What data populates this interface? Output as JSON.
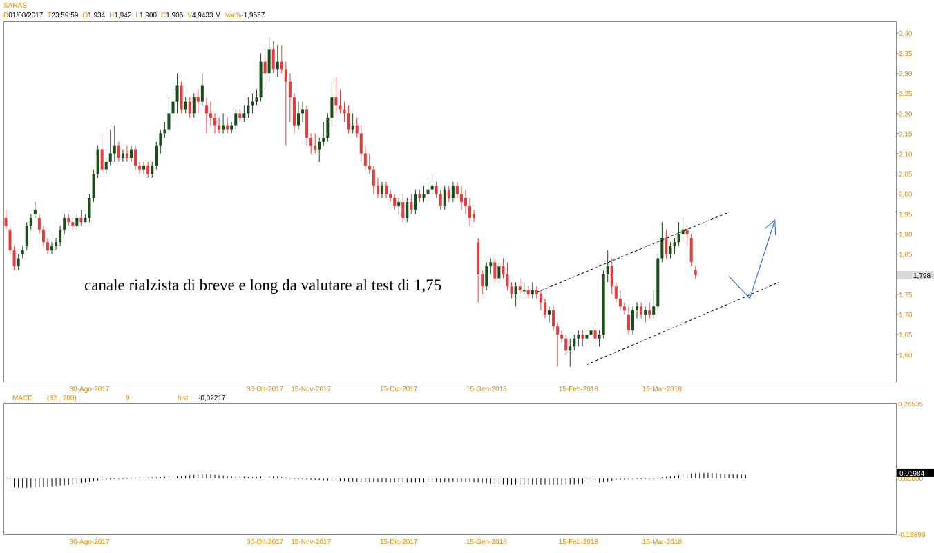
{
  "header": {
    "symbol": "SARAS",
    "fields": [
      {
        "key": "D",
        "value": "01/08/2017"
      },
      {
        "key": "T",
        "value": "23:59:59"
      },
      {
        "key": "O",
        "value": "1,934"
      },
      {
        "key": "H",
        "value": "1,942"
      },
      {
        "key": "L",
        "value": "1,900"
      },
      {
        "key": "C",
        "value": "1,905"
      },
      {
        "key": "V",
        "value": "4,9433 M"
      },
      {
        "key": "Var%",
        "value": "-1,9557"
      }
    ]
  },
  "macd_header": {
    "name": "MACD",
    "params": "(32 , 200) :",
    "signal": "9 :",
    "hist_label": "hist :",
    "hist_value": "-0,02217"
  },
  "colors": {
    "up_candle": "#1a4d1a",
    "down_candle": "#e83a3a",
    "label": "#d89000",
    "arrow": "#3a6fcf",
    "grid_border": "#888888"
  },
  "chart_data": [
    {
      "type": "candlestick",
      "name": "SARAS",
      "x_labels": [
        "30-Ago-2017",
        "30-Ott-2017",
        "15-Nov-2017",
        "15-Dic-2017",
        "15-Gen-2018",
        "15-Feb-2018",
        "15-Mar-2018"
      ],
      "x_label_bars": [
        20,
        62,
        73,
        94,
        115,
        137,
        157
      ],
      "y_ticks": [
        "2,40",
        "2,35",
        "2,30",
        "2,25",
        "2,20",
        "2,15",
        "2,10",
        "2,05",
        "2,00",
        "1,95",
        "1,90",
        "1,85",
        "1,80",
        "1,75",
        "1,70",
        "1,65",
        "1,60"
      ],
      "ylim": [
        1.56,
        2.42
      ],
      "last_price_label": "1,798",
      "last_price": 1.798,
      "annotation": "canale rialzista di breve e long da valutare al test di 1,75",
      "channel_lines": [
        {
          "from": [
            127,
            1.755
          ],
          "to": [
            173,
            1.955
          ]
        },
        {
          "from": [
            139,
            1.575
          ],
          "to": [
            185,
            1.78
          ]
        }
      ],
      "projection_arrow": [
        [
          173,
          1.795
        ],
        [
          178,
          1.74
        ],
        [
          184,
          1.935
        ]
      ],
      "ohlc": [
        [
          1.94,
          1.96,
          1.91,
          1.92
        ],
        [
          1.91,
          1.915,
          1.85,
          1.86
        ],
        [
          1.86,
          1.87,
          1.81,
          1.82
        ],
        [
          1.82,
          1.85,
          1.81,
          1.84
        ],
        [
          1.85,
          1.87,
          1.84,
          1.86
        ],
        [
          1.87,
          1.93,
          1.86,
          1.92
        ],
        [
          1.92,
          1.95,
          1.91,
          1.94
        ],
        [
          1.95,
          1.98,
          1.94,
          1.96
        ],
        [
          1.94,
          1.95,
          1.9,
          1.91
        ],
        [
          1.91,
          1.92,
          1.87,
          1.88
        ],
        [
          1.88,
          1.89,
          1.85,
          1.86
        ],
        [
          1.86,
          1.88,
          1.85,
          1.87
        ],
        [
          1.87,
          1.89,
          1.86,
          1.88
        ],
        [
          1.88,
          1.92,
          1.87,
          1.91
        ],
        [
          1.91,
          1.95,
          1.9,
          1.94
        ],
        [
          1.94,
          1.95,
          1.92,
          1.93
        ],
        [
          1.93,
          1.94,
          1.91,
          1.92
        ],
        [
          1.92,
          1.95,
          1.91,
          1.94
        ],
        [
          1.94,
          1.96,
          1.92,
          1.93
        ],
        [
          1.93,
          1.95,
          1.93,
          1.94
        ],
        [
          1.94,
          2.0,
          1.93,
          1.99
        ],
        [
          1.99,
          2.06,
          1.98,
          2.05
        ],
        [
          2.05,
          2.12,
          2.04,
          2.11
        ],
        [
          2.11,
          2.15,
          2.05,
          2.06
        ],
        [
          2.06,
          2.09,
          2.05,
          2.08
        ],
        [
          2.08,
          2.16,
          2.07,
          2.1
        ],
        [
          2.1,
          2.17,
          2.08,
          2.12
        ],
        [
          2.12,
          2.13,
          2.08,
          2.09
        ],
        [
          2.09,
          2.11,
          2.08,
          2.1
        ],
        [
          2.1,
          2.12,
          2.08,
          2.09
        ],
        [
          2.09,
          2.12,
          2.08,
          2.11
        ],
        [
          2.11,
          2.12,
          2.06,
          2.07
        ],
        [
          2.07,
          2.08,
          2.05,
          2.06
        ],
        [
          2.06,
          2.08,
          2.05,
          2.07
        ],
        [
          2.07,
          2.08,
          2.04,
          2.05
        ],
        [
          2.05,
          2.08,
          2.04,
          2.07
        ],
        [
          2.07,
          2.13,
          2.06,
          2.12
        ],
        [
          2.12,
          2.16,
          2.1,
          2.15
        ],
        [
          2.15,
          2.18,
          2.14,
          2.16
        ],
        [
          2.16,
          2.24,
          2.15,
          2.2
        ],
        [
          2.2,
          2.26,
          2.19,
          2.23
        ],
        [
          2.23,
          2.3,
          2.2,
          2.27
        ],
        [
          2.27,
          2.28,
          2.2,
          2.21
        ],
        [
          2.21,
          2.24,
          2.2,
          2.23
        ],
        [
          2.23,
          2.24,
          2.19,
          2.2
        ],
        [
          2.2,
          2.25,
          2.19,
          2.24
        ],
        [
          2.24,
          2.26,
          2.2,
          2.23
        ],
        [
          2.23,
          2.3,
          2.22,
          2.27
        ],
        [
          2.22,
          2.24,
          2.15,
          2.2
        ],
        [
          2.2,
          2.23,
          2.17,
          2.19
        ],
        [
          2.19,
          2.2,
          2.15,
          2.17
        ],
        [
          2.17,
          2.19,
          2.15,
          2.16
        ],
        [
          2.16,
          2.2,
          2.15,
          2.17
        ],
        [
          2.17,
          2.19,
          2.15,
          2.16
        ],
        [
          2.16,
          2.18,
          2.15,
          2.17
        ],
        [
          2.17,
          2.21,
          2.16,
          2.2
        ],
        [
          2.2,
          2.21,
          2.18,
          2.19
        ],
        [
          2.19,
          2.22,
          2.18,
          2.2
        ],
        [
          2.2,
          2.24,
          2.19,
          2.22
        ],
        [
          2.22,
          2.25,
          2.2,
          2.23
        ],
        [
          2.23,
          2.26,
          2.22,
          2.24
        ],
        [
          2.24,
          2.35,
          2.23,
          2.33
        ],
        [
          2.33,
          2.36,
          2.26,
          2.3
        ],
        [
          2.3,
          2.39,
          2.28,
          2.36
        ],
        [
          2.36,
          2.38,
          2.3,
          2.31
        ],
        [
          2.31,
          2.37,
          2.29,
          2.33
        ],
        [
          2.33,
          2.37,
          2.3,
          2.31
        ],
        [
          2.31,
          2.33,
          2.12,
          2.28
        ],
        [
          2.28,
          2.3,
          2.18,
          2.24
        ],
        [
          2.24,
          2.25,
          2.15,
          2.17
        ],
        [
          2.17,
          2.23,
          2.16,
          2.2
        ],
        [
          2.2,
          2.23,
          2.18,
          2.21
        ],
        [
          2.21,
          2.22,
          2.12,
          2.14
        ],
        [
          2.14,
          2.15,
          2.1,
          2.12
        ],
        [
          2.12,
          2.15,
          2.1,
          2.11
        ],
        [
          2.11,
          2.14,
          2.08,
          2.13
        ],
        [
          2.13,
          2.18,
          2.12,
          2.14
        ],
        [
          2.14,
          2.2,
          2.13,
          2.19
        ],
        [
          2.19,
          2.28,
          2.17,
          2.24
        ],
        [
          2.24,
          2.29,
          2.2,
          2.22
        ],
        [
          2.22,
          2.26,
          2.2,
          2.21
        ],
        [
          2.21,
          2.23,
          2.18,
          2.2
        ],
        [
          2.2,
          2.22,
          2.15,
          2.16
        ],
        [
          2.16,
          2.2,
          2.15,
          2.17
        ],
        [
          2.17,
          2.19,
          2.14,
          2.15
        ],
        [
          2.15,
          2.17,
          2.08,
          2.1
        ],
        [
          2.1,
          2.12,
          2.06,
          2.07
        ],
        [
          2.07,
          2.1,
          2.05,
          2.06
        ],
        [
          2.06,
          2.07,
          2.0,
          2.02
        ],
        [
          2.02,
          2.04,
          1.99,
          2.0
        ],
        [
          2.0,
          2.03,
          1.99,
          2.02
        ],
        [
          2.02,
          2.03,
          1.99,
          2.0
        ],
        [
          2.0,
          2.01,
          1.98,
          1.99
        ],
        [
          1.99,
          2.0,
          1.96,
          1.97
        ],
        [
          1.97,
          1.99,
          1.95,
          1.98
        ],
        [
          1.98,
          2.0,
          1.93,
          1.94
        ],
        [
          1.94,
          1.99,
          1.93,
          1.98
        ],
        [
          1.98,
          2.0,
          1.95,
          1.96
        ],
        [
          1.96,
          2.01,
          1.95,
          2.0
        ],
        [
          2.0,
          2.01,
          1.98,
          1.99
        ],
        [
          1.99,
          2.02,
          1.98,
          2.0
        ],
        [
          2.0,
          2.03,
          1.98,
          2.01
        ],
        [
          2.01,
          2.05,
          2.0,
          2.02
        ],
        [
          2.02,
          2.03,
          1.99,
          2.0
        ],
        [
          2.0,
          2.01,
          1.96,
          1.97
        ],
        [
          1.97,
          2.02,
          1.96,
          2.01
        ],
        [
          2.01,
          2.02,
          1.98,
          1.99
        ],
        [
          1.99,
          2.03,
          1.98,
          2.02
        ],
        [
          2.02,
          2.03,
          1.99,
          2.0
        ],
        [
          2.0,
          2.02,
          1.96,
          1.98
        ],
        [
          1.99,
          2.01,
          1.95,
          1.97
        ],
        [
          1.97,
          1.99,
          1.92,
          1.94
        ],
        [
          1.95,
          1.96,
          1.93,
          1.94
        ],
        [
          1.88,
          1.89,
          1.73,
          1.8
        ],
        [
          1.8,
          1.81,
          1.75,
          1.77
        ],
        [
          1.77,
          1.83,
          1.76,
          1.82
        ],
        [
          1.82,
          1.84,
          1.8,
          1.83
        ],
        [
          1.83,
          1.84,
          1.78,
          1.79
        ],
        [
          1.79,
          1.83,
          1.78,
          1.82
        ],
        [
          1.82,
          1.84,
          1.79,
          1.8
        ],
        [
          1.8,
          1.83,
          1.76,
          1.77
        ],
        [
          1.77,
          1.78,
          1.74,
          1.75
        ],
        [
          1.75,
          1.78,
          1.72,
          1.77
        ],
        [
          1.77,
          1.79,
          1.75,
          1.76
        ],
        [
          1.76,
          1.78,
          1.75,
          1.76
        ],
        [
          1.76,
          1.77,
          1.74,
          1.75
        ],
        [
          1.75,
          1.78,
          1.74,
          1.76
        ],
        [
          1.76,
          1.77,
          1.74,
          1.75
        ],
        [
          1.75,
          1.76,
          1.71,
          1.73
        ],
        [
          1.73,
          1.74,
          1.69,
          1.7
        ],
        [
          1.7,
          1.72,
          1.68,
          1.71
        ],
        [
          1.71,
          1.72,
          1.66,
          1.67
        ],
        [
          1.67,
          1.68,
          1.57,
          1.65
        ],
        [
          1.65,
          1.66,
          1.63,
          1.64
        ],
        [
          1.64,
          1.65,
          1.6,
          1.61
        ],
        [
          1.61,
          1.64,
          1.57,
          1.62
        ],
        [
          1.62,
          1.65,
          1.61,
          1.64
        ],
        [
          1.64,
          1.66,
          1.62,
          1.65
        ],
        [
          1.65,
          1.66,
          1.62,
          1.64
        ],
        [
          1.64,
          1.66,
          1.62,
          1.65
        ],
        [
          1.65,
          1.67,
          1.63,
          1.66
        ],
        [
          1.66,
          1.68,
          1.62,
          1.64
        ],
        [
          1.64,
          1.66,
          1.62,
          1.65
        ],
        [
          1.65,
          1.81,
          1.64,
          1.8
        ],
        [
          1.8,
          1.86,
          1.78,
          1.82
        ],
        [
          1.82,
          1.84,
          1.75,
          1.77
        ],
        [
          1.77,
          1.78,
          1.73,
          1.74
        ],
        [
          1.74,
          1.76,
          1.71,
          1.72
        ],
        [
          1.72,
          1.73,
          1.7,
          1.71
        ],
        [
          1.7,
          1.72,
          1.65,
          1.66
        ],
        [
          1.66,
          1.72,
          1.65,
          1.71
        ],
        [
          1.71,
          1.73,
          1.69,
          1.72
        ],
        [
          1.72,
          1.73,
          1.69,
          1.7
        ],
        [
          1.7,
          1.72,
          1.68,
          1.71
        ],
        [
          1.71,
          1.73,
          1.69,
          1.7
        ],
        [
          1.7,
          1.76,
          1.69,
          1.72
        ],
        [
          1.72,
          1.85,
          1.71,
          1.84
        ],
        [
          1.84,
          1.93,
          1.83,
          1.89
        ],
        [
          1.89,
          1.91,
          1.84,
          1.85
        ],
        [
          1.85,
          1.88,
          1.84,
          1.87
        ],
        [
          1.87,
          1.89,
          1.85,
          1.88
        ],
        [
          1.88,
          1.93,
          1.87,
          1.9
        ],
        [
          1.9,
          1.94,
          1.88,
          1.91
        ],
        [
          1.91,
          1.92,
          1.87,
          1.9
        ],
        [
          1.89,
          1.9,
          1.82,
          1.83
        ],
        [
          1.81,
          1.82,
          1.79,
          1.798
        ]
      ]
    },
    {
      "type": "bar",
      "name": "MACD",
      "x_labels": [
        "30-Ago-2017",
        "30-Ott-2017",
        "15-Nov-2017",
        "15-Dic-2017",
        "15-Gen-2018",
        "15-Feb-2018",
        "15-Mar-2018"
      ],
      "y_ticks": [
        "0,26535",
        "0,00000",
        "-0,19899"
      ],
      "ylim": [
        -0.19899,
        0.26535
      ],
      "last_value_label": "0,01984",
      "last_value": 0.01984,
      "hist": [
        -0.03,
        -0.031,
        -0.032,
        -0.033,
        -0.034,
        -0.034,
        -0.033,
        -0.032,
        -0.031,
        -0.03,
        -0.029,
        -0.028,
        -0.027,
        -0.026,
        -0.025,
        -0.023,
        -0.021,
        -0.019,
        -0.017,
        -0.015,
        -0.013,
        -0.011,
        -0.009,
        -0.007,
        -0.005,
        -0.003,
        -0.002,
        -0.001,
        0.0,
        0.001,
        0.002,
        0.002,
        0.003,
        0.003,
        0.003,
        0.004,
        0.004,
        0.005,
        0.006,
        0.007,
        0.008,
        0.009,
        0.01,
        0.011,
        0.012,
        0.013,
        0.014,
        0.015,
        0.015,
        0.014,
        0.013,
        0.012,
        0.011,
        0.01,
        0.009,
        0.008,
        0.007,
        0.006,
        0.005,
        0.004,
        0.005,
        0.007,
        0.009,
        0.01,
        0.009,
        0.007,
        0.005,
        0.003,
        0.001,
        -0.001,
        -0.002,
        -0.003,
        -0.004,
        -0.005,
        -0.006,
        -0.007,
        -0.008,
        -0.009,
        -0.01,
        -0.01,
        -0.011,
        -0.011,
        -0.012,
        -0.012,
        -0.013,
        -0.013,
        -0.013,
        -0.014,
        -0.014,
        -0.014,
        -0.014,
        -0.015,
        -0.015,
        -0.015,
        -0.015,
        -0.015,
        -0.015,
        -0.015,
        -0.015,
        -0.015,
        -0.015,
        -0.015,
        -0.015,
        -0.014,
        -0.014,
        -0.014,
        -0.014,
        -0.013,
        -0.013,
        -0.013,
        -0.013,
        -0.013,
        -0.014,
        -0.015,
        -0.016,
        -0.018,
        -0.019,
        -0.02,
        -0.021,
        -0.021,
        -0.022,
        -0.022,
        -0.022,
        -0.022,
        -0.022,
        -0.022,
        -0.022,
        -0.022,
        -0.022,
        -0.022,
        -0.022,
        -0.022,
        -0.022,
        -0.022,
        -0.021,
        -0.021,
        -0.021,
        -0.02,
        -0.02,
        -0.019,
        -0.018,
        -0.017,
        -0.016,
        -0.014,
        -0.012,
        -0.01,
        -0.008,
        -0.006,
        -0.004,
        -0.003,
        -0.002,
        -0.001,
        -0.001,
        0.0,
        0.0,
        0.0,
        0.002,
        0.004,
        0.006,
        0.008,
        0.01,
        0.012,
        0.014,
        0.016,
        0.018,
        0.019,
        0.02,
        0.02,
        0.02,
        0.019,
        0.018,
        0.017,
        0.016,
        0.015,
        0.015,
        0.014,
        0.014,
        0.013
      ]
    }
  ]
}
